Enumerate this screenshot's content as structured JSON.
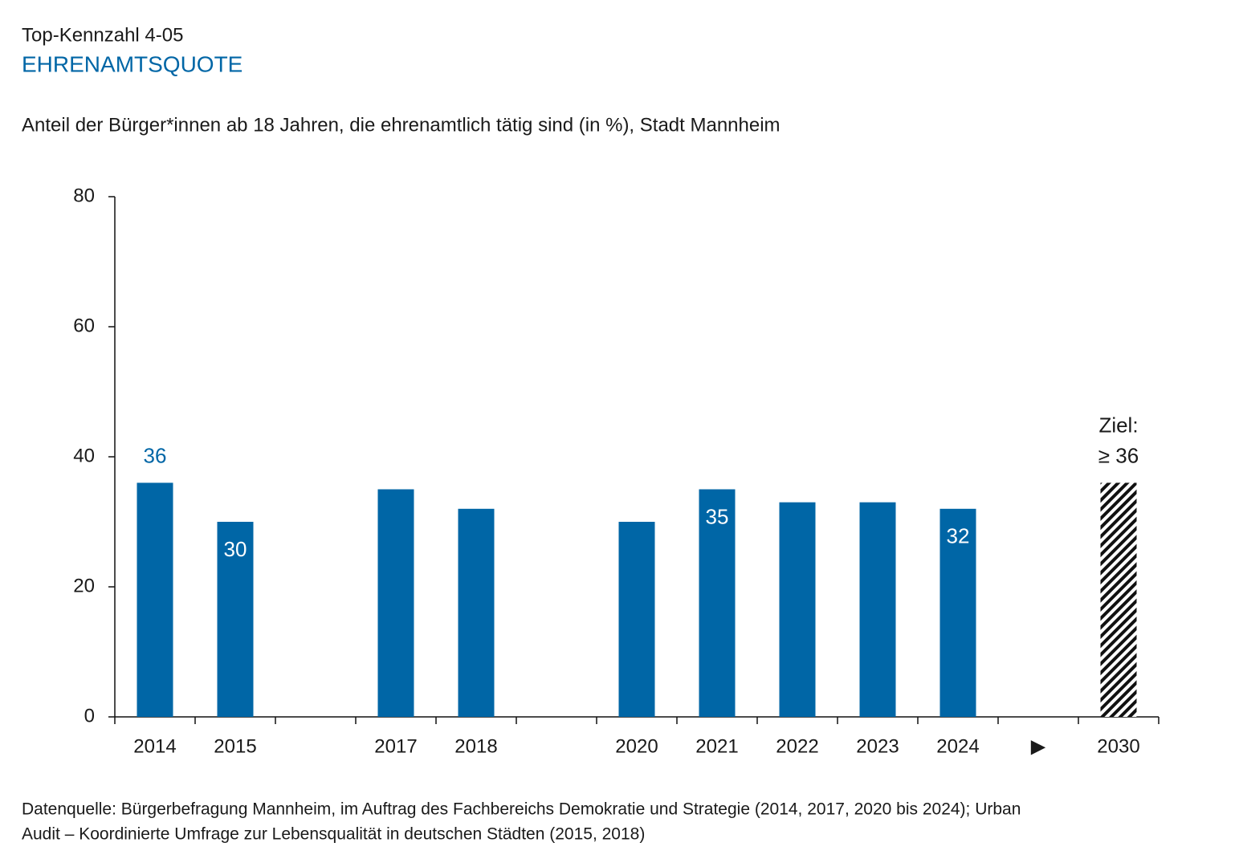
{
  "chart_data": {
    "type": "bar",
    "kicker": "Top-Kennzahl 4-05",
    "title": "EHRENAMTSQUOTE",
    "subtitle": "Anteil der Bürger*innen ab 18 Jahren, die ehrenamtlich tätig sind (in %), Stadt Mannheim",
    "categories": [
      "2014",
      "2015",
      null,
      "2017",
      "2018",
      null,
      "2020",
      "2021",
      "2022",
      "2023",
      "2024",
      "▶",
      "2030"
    ],
    "values": [
      36,
      30,
      null,
      35,
      32,
      null,
      30,
      35,
      33,
      33,
      32,
      null,
      36
    ],
    "value_labels": [
      null,
      null,
      null,
      null,
      null,
      null,
      null,
      null,
      null,
      null,
      null,
      null,
      "≥ 36"
    ],
    "label_position": [
      "above",
      "inside",
      null,
      null,
      null,
      null,
      null,
      "inside",
      null,
      null,
      "inside",
      null,
      "above"
    ],
    "hatched": [
      false,
      false,
      false,
      false,
      false,
      false,
      false,
      false,
      false,
      false,
      false,
      false,
      true
    ],
    "target_annotation": "Ziel:",
    "color": "#0066a6",
    "ylim": [
      0,
      80
    ],
    "yticks": [
      0,
      20,
      40,
      60,
      80
    ],
    "grid": false,
    "source": [
      "Datenquelle: Bürgerbefragung Mannheim, im Auftrag des Fachbereichs Demokratie und Strategie (2014, 2017, 2020 bis 2024); Urban",
      "Audit – Koordinierte Umfrage zur Lebensqualität in deutschen Städten (2015, 2018)"
    ]
  }
}
